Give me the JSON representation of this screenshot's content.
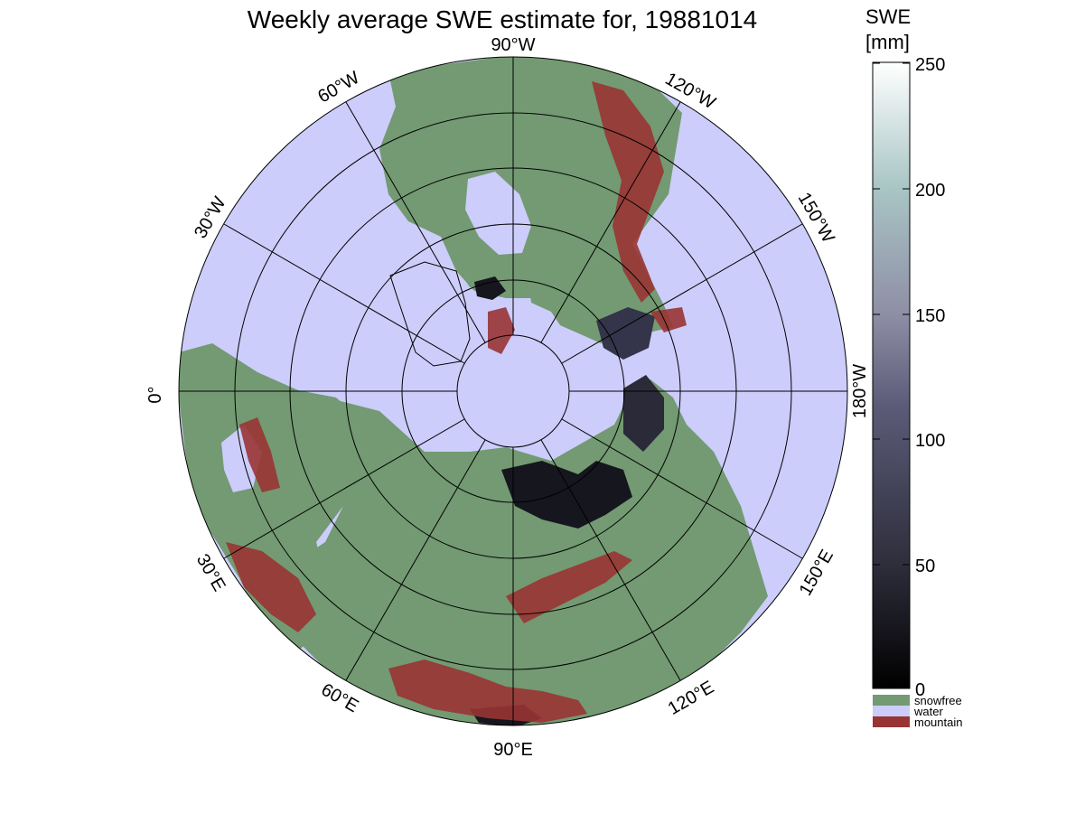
{
  "title": "Weekly average SWE estimate for, 19881014",
  "colorbar": {
    "title_line1": "SWE",
    "title_line2": "[mm]",
    "ticks": [
      "250",
      "200",
      "150",
      "100",
      "50",
      "0"
    ],
    "tick_values": [
      250,
      200,
      150,
      100,
      50,
      0
    ],
    "min": 0,
    "max": 250,
    "gradient_colors": [
      "#000000",
      "#2e2e3c",
      "#5b5b78",
      "#8f8fa6",
      "#a9c5c5",
      "#ffffff"
    ]
  },
  "legend": [
    {
      "label": "snowfree",
      "color": "#739a72"
    },
    {
      "label": "water",
      "color": "#cccdfb"
    },
    {
      "label": "mountain",
      "color": "#993434"
    }
  ],
  "longitude_labels": {
    "lon_90w": "90°W",
    "lon_120w": "120°W",
    "lon_150w": "150°W",
    "lon_180w": "180°W",
    "lon_150e": "150°E",
    "lon_120e": "120°E",
    "lon_90e": "90°E",
    "lon_60e": "60°E",
    "lon_30e": "30°E",
    "lon_0": "0°",
    "lon_30w": "30°W",
    "lon_60w": "60°W"
  },
  "colors": {
    "water": "#cccdfb",
    "land_snowfree": "#739a72",
    "mountain": "#993434",
    "snow_dark": "#16161e",
    "grid": "#000000"
  }
}
